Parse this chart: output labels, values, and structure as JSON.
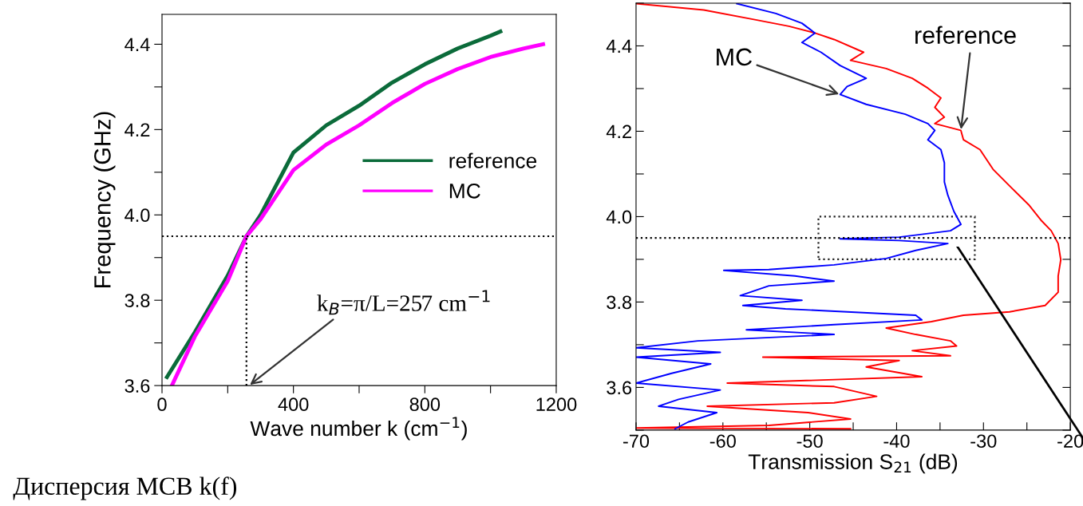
{
  "chart_data": [
    {
      "type": "line",
      "xlabel": "Wave number k (cm$^{−1}$)",
      "ylabel": "Frequency (GHz)",
      "xlim": [
        0,
        1200
      ],
      "xticks": [
        0,
        {
          "value": 200,
          "label": null
        },
        400,
        {
          "value": 600,
          "label": null
        },
        800,
        {
          "value": 1000,
          "label": null
        },
        1200
      ],
      "ylim": [
        3.6,
        4.47
      ],
      "yticks": [
        3.6,
        {
          "value": 3.7,
          "label": null
        },
        3.8,
        {
          "value": 3.9,
          "label": null
        },
        {
          "value": 4.0,
          "label": "4.0"
        },
        {
          "value": 4.1,
          "label": null
        },
        4.2,
        {
          "value": 4.3,
          "label": null
        },
        4.4
      ],
      "legend": "right",
      "grid": false,
      "line_style": "solid",
      "marker": "none",
      "series": [
        {
          "name": "reference",
          "color": "#0b6b3a",
          "x": [
            15,
            100,
            200,
            257,
            300,
            400,
            500,
            600,
            700,
            800,
            900,
            1000,
            1030
          ],
          "values": [
            3.62,
            3.725,
            3.858,
            3.95,
            4.0,
            4.146,
            4.21,
            4.256,
            4.31,
            4.353,
            4.39,
            4.42,
            4.43
          ]
        },
        {
          "name": "MC",
          "color": "#ff00ff",
          "x": [
            30,
            100,
            200,
            257,
            300,
            400,
            500,
            600,
            700,
            800,
            900,
            1000,
            1100,
            1160
          ],
          "values": [
            3.6,
            3.715,
            3.845,
            3.95,
            3.99,
            4.105,
            4.165,
            4.21,
            4.262,
            4.307,
            4.342,
            4.37,
            4.39,
            4.4
          ]
        }
      ],
      "ref_lines": [
        {
          "axis": "y",
          "value": 3.95,
          "color": "#000000",
          "line_style": "dotted"
        },
        {
          "axis": "x",
          "value": 257,
          "color": "#000000",
          "line_style": "dotted"
        }
      ],
      "annotations": [
        {
          "text": "k$_{B}$=π/L=257 cm$^{−1}$",
          "x": 265,
          "y": 3.6
        },
        "Дисперсия МСВ k(f)"
      ]
    },
    {
      "type": "line",
      "xlabel": "Transmission S$_{21}$ (dB)",
      "xlim": [
        -70,
        -20
      ],
      "xticks": [
        -70,
        {
          "value": -65,
          "label": null
        },
        -60,
        {
          "value": -55,
          "label": null
        },
        -50,
        {
          "value": -45,
          "label": null
        },
        -40,
        {
          "value": -35,
          "label": null
        },
        -30,
        {
          "value": -25,
          "label": null
        },
        -20
      ],
      "ylim": [
        3.5,
        4.5
      ],
      "yticks": [
        {
          "value": 3.5,
          "label": null
        },
        3.6,
        {
          "value": 3.7,
          "label": null
        },
        3.8,
        {
          "value": 3.9,
          "label": null
        },
        {
          "value": 4.0,
          "label": "4.0"
        },
        {
          "value": 4.1,
          "label": null
        },
        4.2,
        {
          "value": 4.3,
          "label": null
        },
        4.4,
        {
          "value": 4.5,
          "label": null
        }
      ],
      "legend": false,
      "grid": false,
      "line_style": "solid",
      "marker": "none",
      "series": [
        {
          "name": "reference",
          "color": "#ff0000",
          "x": [
            -70,
            -62.2,
            -56.2,
            -52.4,
            -49.4,
            -47.2,
            -43.8,
            -45.3,
            -41.2,
            -38.2,
            -36.4,
            -34.9,
            -35.6,
            -34.5,
            -35.6,
            -32.6,
            -32.3,
            -30.4,
            -28.9,
            -26.7,
            -24.8,
            -23.3,
            -22.2,
            -21.4,
            -21.1,
            -21.4,
            -21.4,
            -22.9,
            -27.0,
            -32.3,
            -36.0,
            -41.2,
            -37.8,
            -33.8,
            -33.1,
            -38.2,
            -33.8,
            -55.4,
            -39.7,
            -43.5,
            -37.1,
            -59.5,
            -47.2,
            -42.3,
            -47.2,
            -61.8,
            -50.2,
            -45.3,
            -54.7,
            -70,
            -45.3
          ],
          "values": [
            4.499,
            4.484,
            4.461,
            4.446,
            4.43,
            4.415,
            4.385,
            4.366,
            4.347,
            4.324,
            4.301,
            4.278,
            4.256,
            4.233,
            4.218,
            4.202,
            4.18,
            4.157,
            4.111,
            4.066,
            4.028,
            3.99,
            3.967,
            3.937,
            3.899,
            3.861,
            3.823,
            3.792,
            3.777,
            3.769,
            3.754,
            3.739,
            3.724,
            3.709,
            3.697,
            3.686,
            3.674,
            3.671,
            3.663,
            3.648,
            3.625,
            3.61,
            3.602,
            3.579,
            3.564,
            3.556,
            3.541,
            3.526,
            3.511,
            3.505,
            3.503
          ]
        },
        {
          "name": "MC",
          "color": "#0000ff",
          "x": [
            -58.4,
            -53.9,
            -50.9,
            -49.4,
            -50.9,
            -48.7,
            -46.5,
            -43.5,
            -45.7,
            -46.5,
            -43.5,
            -39.0,
            -36.4,
            -35.6,
            -36.4,
            -34.9,
            -34.5,
            -34.5,
            -34.1,
            -33.4,
            -32.6,
            -33.8,
            -39.7,
            -46.5,
            -39.7,
            -34.1,
            -37.8,
            -41.2,
            -47.2,
            -54.7,
            -59.9,
            -51.7,
            -47.2,
            -54.7,
            -58.0,
            -50.9,
            -57.7,
            -52.8,
            -37.8,
            -37.1,
            -47.2,
            -57.3,
            -47.2,
            -62.9,
            -70,
            -60.3,
            -70,
            -61.4,
            -65.9,
            -70,
            -60.3,
            -65.1,
            -67.4,
            -60.7,
            -64.0,
            -65.5
          ],
          "values": [
            4.499,
            4.476,
            4.453,
            4.43,
            4.408,
            4.385,
            4.354,
            4.324,
            4.305,
            4.286,
            4.263,
            4.24,
            4.218,
            4.202,
            4.18,
            4.157,
            4.126,
            4.081,
            4.05,
            4.012,
            3.982,
            3.967,
            3.952,
            3.948,
            3.944,
            3.937,
            3.921,
            3.902,
            3.887,
            3.876,
            3.874,
            3.861,
            3.849,
            3.838,
            3.815,
            3.804,
            3.792,
            3.784,
            3.769,
            3.758,
            3.747,
            3.735,
            3.724,
            3.709,
            3.693,
            3.682,
            3.671,
            3.655,
            3.633,
            3.61,
            3.594,
            3.572,
            3.556,
            3.541,
            3.519,
            3.503
          ]
        }
      ],
      "ref_lines": [
        {
          "axis": "y",
          "value": 3.95,
          "color": "#000000",
          "line_style": "dotted"
        }
      ]
    }
  ]
}
